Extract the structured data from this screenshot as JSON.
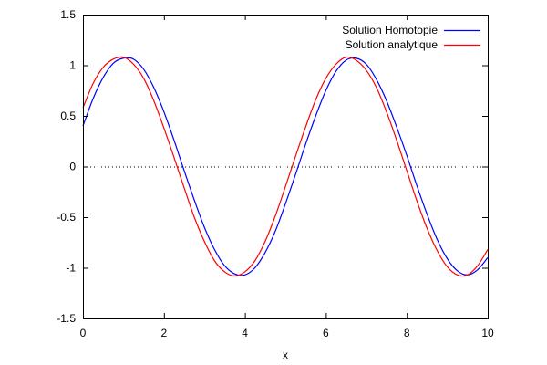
{
  "chart_data": {
    "type": "line",
    "title": "",
    "xlabel": "x",
    "ylabel": "",
    "xlim": [
      0,
      10
    ],
    "ylim": [
      -1.5,
      1.5
    ],
    "x_ticks": [
      0,
      2,
      4,
      6,
      8,
      10
    ],
    "y_ticks": [
      -1.5,
      -1,
      -0.5,
      0,
      0.5,
      1,
      1.5
    ],
    "x_tick_labels": [
      "0",
      "2",
      "4",
      "6",
      "8",
      "10"
    ],
    "y_tick_labels": [
      "-1.5",
      "-1",
      "-0.5",
      "0",
      "0.5",
      "1",
      "1.5"
    ],
    "grid": false,
    "zero_line": {
      "y": 0,
      "style": "dotted"
    },
    "legend_position": "top-right",
    "series": [
      {
        "name": "Solution Homotopie",
        "color": "#0000ff",
        "x": [
          0,
          0.25,
          0.5,
          0.75,
          1.0,
          1.25,
          1.5,
          1.75,
          2.0,
          2.25,
          2.5,
          2.75,
          3.0,
          3.25,
          3.5,
          3.75,
          4.0,
          4.25,
          4.5,
          4.75,
          5.0,
          5.25,
          5.5,
          5.75,
          6.0,
          6.25,
          6.5,
          6.75,
          7.0,
          7.25,
          7.5,
          7.75,
          8.0,
          8.25,
          8.5,
          8.75,
          9.0,
          9.25,
          9.5,
          9.75,
          10.0
        ],
        "values": [
          0.4,
          0.67,
          0.88,
          1.02,
          1.07,
          1.06,
          0.96,
          0.78,
          0.54,
          0.26,
          -0.04,
          -0.33,
          -0.6,
          -0.82,
          -0.98,
          -1.06,
          -1.07,
          -1.0,
          -0.85,
          -0.64,
          -0.37,
          -0.08,
          0.22,
          0.5,
          0.75,
          0.94,
          1.05,
          1.07,
          1.01,
          0.86,
          0.65,
          0.39,
          0.11,
          -0.19,
          -0.47,
          -0.72,
          -0.91,
          -1.03,
          -1.07,
          -1.02,
          -0.9
        ]
      },
      {
        "name": "Solution analytique",
        "color": "#ff0000",
        "x": [
          0,
          0.25,
          0.5,
          0.75,
          1.0,
          1.25,
          1.5,
          1.75,
          2.0,
          2.25,
          2.5,
          2.75,
          3.0,
          3.25,
          3.5,
          3.75,
          4.0,
          4.25,
          4.5,
          4.75,
          5.0,
          5.25,
          5.5,
          5.75,
          6.0,
          6.25,
          6.5,
          6.75,
          7.0,
          7.25,
          7.5,
          7.75,
          8.0,
          8.25,
          8.5,
          8.75,
          9.0,
          9.25,
          9.5,
          9.75,
          10.0
        ],
        "values": [
          0.58,
          0.82,
          0.98,
          1.06,
          1.08,
          1.01,
          0.87,
          0.65,
          0.38,
          0.09,
          -0.21,
          -0.5,
          -0.74,
          -0.93,
          -1.04,
          -1.08,
          -1.04,
          -0.93,
          -0.74,
          -0.49,
          -0.2,
          0.1,
          0.39,
          0.66,
          0.87,
          1.01,
          1.08,
          1.05,
          0.95,
          0.78,
          0.54,
          0.26,
          -0.04,
          -0.34,
          -0.61,
          -0.83,
          -0.99,
          -1.07,
          -1.07,
          -0.98,
          -0.82
        ]
      }
    ]
  }
}
